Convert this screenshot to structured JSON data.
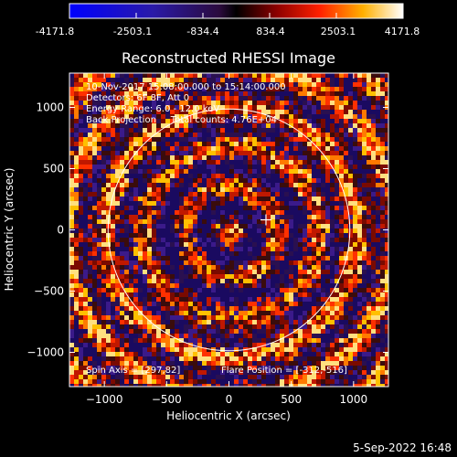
{
  "colorbar": {
    "ticks": [
      "-4171.8",
      "-2503.1",
      "-834.4",
      "834.4",
      "2503.1",
      "4171.8"
    ]
  },
  "colors": {
    "background": "#000000",
    "foreground": "#ffffff"
  },
  "chart_data": {
    "type": "heatmap",
    "title": "Reconstructed RHESSI Image",
    "xlabel": "Heliocentric X (arcsec)",
    "ylabel": "Heliocentric Y (arcsec)",
    "xlim": [
      -1280,
      1280
    ],
    "ylim": [
      -1280,
      1280
    ],
    "xticks": [
      -1000,
      -500,
      0,
      500,
      1000
    ],
    "yticks": [
      -1000,
      -500,
      0,
      500,
      1000
    ],
    "xtick_labels": [
      "−1000",
      "−500",
      "0",
      "500",
      "1000"
    ],
    "ytick_labels": [
      "−1000",
      "−500",
      "0",
      "500",
      "1000"
    ],
    "value_range": [
      -4171.8,
      4171.8
    ],
    "limb_circle": {
      "center": [
        0,
        0
      ],
      "radius_arcsec": 970
    },
    "spin_axis_marker": [
      297,
      82
    ],
    "info_lines": [
      "10-Nov-2017 15:08:00.000 to 15:14:00.000",
      "Detectors: 6F 8F, Att 0",
      "Energy Range: 6.0 - 12.0 keV",
      "Back Projection     Total counts: 4.76E+04"
    ],
    "spin_axis_text": "Spin Axis = [297,82]",
    "flare_position_text": "Flare Position = [-312,-516]",
    "timestamp": "5-Sep-2022 16:48"
  }
}
